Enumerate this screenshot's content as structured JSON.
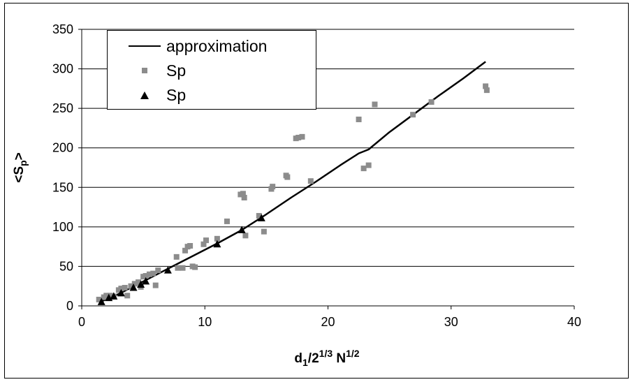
{
  "chart_data": {
    "type": "scatter",
    "title": "",
    "xlabel": "d1/2^(1/3) N^(1/2)",
    "ylabel": "<Sp>",
    "xlim": [
      0,
      40
    ],
    "ylim": [
      0,
      350
    ],
    "xticks": [
      0,
      10,
      20,
      30,
      40
    ],
    "yticks": [
      0,
      50,
      100,
      150,
      200,
      250,
      300,
      350
    ],
    "grid": "horizontal",
    "legend_position": "top-left",
    "series": [
      {
        "name": "approximation",
        "kind": "line",
        "color": "#000000",
        "x": [
          1.5,
          3,
          5,
          7,
          9,
          11,
          13,
          15,
          17,
          19,
          21,
          22.5,
          23.3,
          25,
          27,
          29,
          31,
          32.8
        ],
        "y": [
          5,
          15,
          31,
          47,
          63,
          79,
          96,
          116,
          137,
          157,
          178,
          193,
          198,
          220,
          243,
          266,
          288,
          309
        ]
      },
      {
        "name": "Sp",
        "kind": "scatter",
        "marker": "square",
        "color": "#8c8c8c",
        "x": [
          1.4,
          1.8,
          2.0,
          2.3,
          2.6,
          3.0,
          3.2,
          3.5,
          3.7,
          4.0,
          4.3,
          4.6,
          4.8,
          5.0,
          5.2,
          5.5,
          5.8,
          6.0,
          6.2,
          7.7,
          7.8,
          8.2,
          8.4,
          8.6,
          8.8,
          9.0,
          9.2,
          9.9,
          10.1,
          11.0,
          11.8,
          12.9,
          13.1,
          13.2,
          13.3,
          14.4,
          14.8,
          15.4,
          15.5,
          16.6,
          16.7,
          17.4,
          17.6,
          17.9,
          18.6,
          22.5,
          22.9,
          23.3,
          23.8,
          26.9,
          28.4,
          32.8,
          32.9
        ],
        "y": [
          8,
          11,
          13,
          13,
          12,
          20,
          22,
          23,
          13,
          25,
          28,
          30,
          24,
          37,
          38,
          40,
          41,
          26,
          45,
          62,
          48,
          48,
          70,
          75,
          76,
          50,
          49,
          78,
          83,
          85,
          107,
          141,
          142,
          137,
          89,
          114,
          94,
          148,
          151,
          165,
          163,
          212,
          213,
          214,
          158,
          236,
          174,
          178,
          255,
          242,
          258,
          278,
          273
        ]
      },
      {
        "name": "Sp",
        "kind": "scatter",
        "marker": "triangle",
        "color": "#000000",
        "x": [
          1.6,
          2.2,
          2.6,
          3.2,
          4.2,
          4.8,
          5.2,
          7.0,
          11.0,
          13.0,
          14.6
        ],
        "y": [
          5,
          10,
          12,
          16,
          23,
          27,
          31,
          45,
          78,
          96,
          111
        ]
      }
    ]
  }
}
